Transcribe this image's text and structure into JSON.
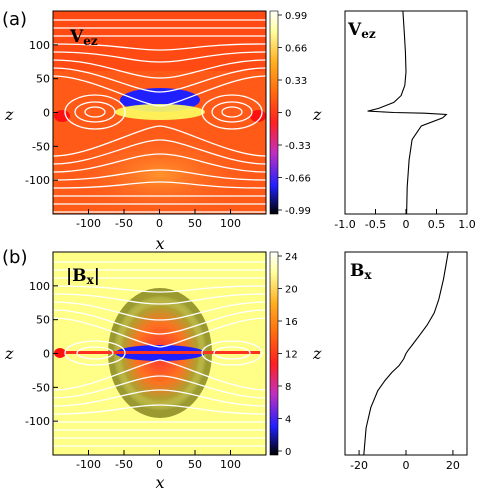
{
  "chart_data": [
    {
      "type": "heatmap",
      "panel_label": "(a)",
      "title": "V_ez",
      "title_main": "V",
      "title_sub": "ez",
      "xlabel": "x",
      "ylabel": "z",
      "x_ticks": [
        -100,
        -50,
        0,
        50,
        100
      ],
      "y_ticks": [
        100,
        50,
        0,
        -50,
        -100
      ],
      "xlim": [
        -150,
        150
      ],
      "ylim": [
        -150,
        150
      ],
      "colorbar_ticks": [
        "0.99",
        "0.66",
        "0.33",
        "0",
        "-0.33",
        "-0.66",
        "-0.99"
      ],
      "colorbar_range": [
        -0.99,
        0.99
      ],
      "colormap": [
        "#000000",
        "#2020ff",
        "#c030c0",
        "#ff2020",
        "#ff6a10",
        "#ffb020",
        "#ffffa0",
        "#ffffff"
      ],
      "overlay": "white field lines"
    },
    {
      "type": "line",
      "title": "V_ez",
      "title_main": "V",
      "title_sub": "ez",
      "ylabel": "z",
      "x_ticks": [
        "-1.0",
        "-0.5",
        "0",
        "0.5",
        "1.0"
      ],
      "xlim": [
        -1.0,
        1.0
      ],
      "ylim": [
        -150,
        150
      ],
      "series": [
        {
          "x": [
            -0.05,
            -0.03,
            -0.01,
            0.0,
            -0.02,
            -0.08,
            -0.2,
            -0.45,
            -0.63,
            -0.2,
            0.3,
            0.66,
            0.6,
            0.25,
            0.1,
            0.05,
            0.02,
            0.01
          ],
          "y": [
            150,
            120,
            90,
            60,
            40,
            25,
            15,
            6,
            2,
            0,
            -1,
            -3,
            -8,
            -20,
            -40,
            -70,
            -110,
            -150
          ]
        }
      ]
    },
    {
      "type": "heatmap",
      "panel_label": "(b)",
      "title": "|B_x|",
      "title_main": "|B",
      "title_sub": "x",
      "xlabel": "x",
      "ylabel": "z",
      "x_ticks": [
        -100,
        -50,
        0,
        50,
        100
      ],
      "y_ticks": [
        100,
        50,
        0,
        -50,
        -100
      ],
      "xlim": [
        -150,
        150
      ],
      "ylim": [
        -150,
        150
      ],
      "colorbar_ticks": [
        "24",
        "20",
        "16",
        "12",
        "8",
        "4",
        "0"
      ],
      "colorbar_range": [
        0,
        24
      ],
      "colormap": [
        "#000000",
        "#2020ff",
        "#c030c0",
        "#ff2020",
        "#ff6a10",
        "#ffb020",
        "#ffffa0",
        "#ffffff"
      ],
      "overlay": "white field lines"
    },
    {
      "type": "line",
      "title": "B_x",
      "title_main": "B",
      "title_sub": "x",
      "ylabel": "z",
      "x_ticks": [
        "-20",
        "0",
        "20"
      ],
      "xlim": [
        -26,
        26
      ],
      "ylim": [
        -150,
        150
      ],
      "series": [
        {
          "x": [
            -18,
            -17,
            -15,
            -12,
            -9,
            -6,
            -3,
            -1,
            0,
            1,
            3,
            6,
            9,
            12,
            14,
            16,
            17,
            18
          ],
          "y": [
            -150,
            -110,
            -80,
            -55,
            -40,
            -28,
            -18,
            -8,
            0,
            5,
            14,
            28,
            42,
            60,
            80,
            110,
            130,
            150
          ]
        }
      ]
    }
  ]
}
